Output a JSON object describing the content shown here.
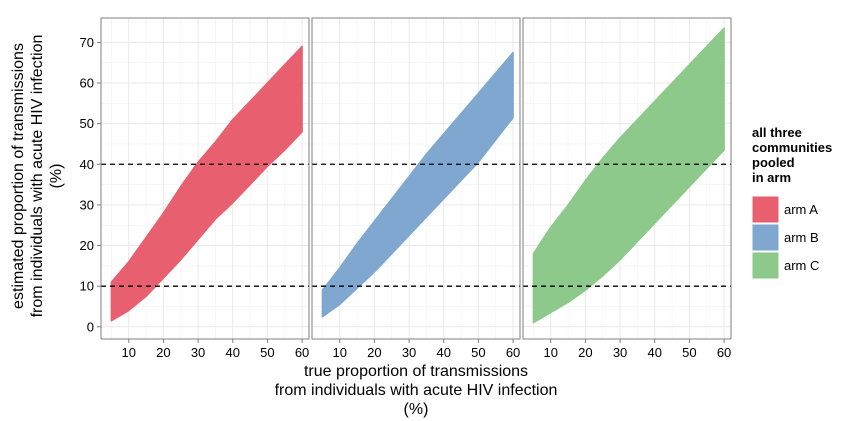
{
  "chart_data": {
    "type": "area",
    "layout": "faceted",
    "xlabel_lines": [
      "true proportion of transmissions",
      "from individuals with acute HIV infection",
      "(%)"
    ],
    "ylabel_lines": [
      "estimated proportion of transmissions",
      "from individuals with acute HIV infection",
      "(%)"
    ],
    "xlim": [
      2,
      62
    ],
    "ylim": [
      -3,
      76
    ],
    "x_ticks": [
      10,
      20,
      30,
      40,
      50,
      60
    ],
    "y_ticks": [
      0,
      10,
      20,
      30,
      40,
      50,
      60,
      70
    ],
    "grid": true,
    "reference_lines_y": [
      10,
      40
    ],
    "legend": {
      "title_lines": [
        "all three",
        "communities",
        "pooled",
        "in arm"
      ],
      "placement": "right"
    },
    "series": [
      {
        "name": "arm A",
        "color": "#E8606F",
        "x": [
          5,
          10,
          15,
          20,
          25,
          30,
          35,
          40,
          45,
          50,
          55,
          60
        ],
        "lower": [
          1.5,
          4,
          7.5,
          12,
          16.5,
          21.5,
          26.5,
          30.5,
          35,
          39.5,
          43.5,
          48
        ],
        "upper": [
          11,
          16,
          22,
          28,
          34.5,
          40.5,
          45.5,
          51,
          55.5,
          60,
          64.5,
          69
        ]
      },
      {
        "name": "arm B",
        "color": "#7FA7D0",
        "x": [
          5,
          10,
          15,
          20,
          25,
          30,
          35,
          40,
          45,
          50,
          55,
          60
        ],
        "lower": [
          2.5,
          5.5,
          9.5,
          13.5,
          18,
          22.5,
          27,
          31.5,
          36,
          40.5,
          46,
          51.5
        ],
        "upper": [
          9,
          14.5,
          20.5,
          26,
          31.5,
          37,
          42.5,
          47.5,
          52.5,
          57.5,
          62.5,
          67.5
        ]
      },
      {
        "name": "arm C",
        "color": "#8CC98A",
        "x": [
          5,
          10,
          15,
          20,
          25,
          30,
          35,
          40,
          45,
          50,
          55,
          60
        ],
        "lower": [
          1,
          3.5,
          6,
          9,
          12.5,
          16.5,
          21,
          25.5,
          30,
          34.5,
          39,
          43.5
        ],
        "upper": [
          18,
          24.5,
          30,
          36,
          41.5,
          46.5,
          51,
          55.5,
          60,
          64.5,
          69,
          73.5
        ]
      }
    ]
  }
}
